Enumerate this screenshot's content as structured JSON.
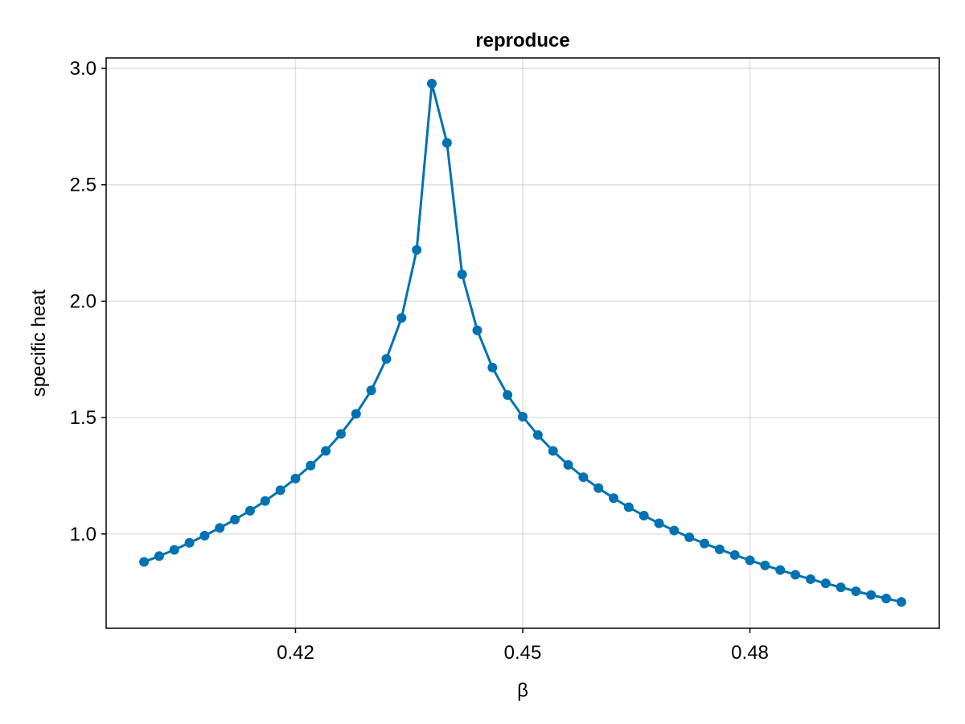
{
  "chart_data": {
    "type": "line",
    "title": "reproduce",
    "xlabel": "β",
    "ylabel": "specific heat",
    "xlim": [
      0.395,
      0.505
    ],
    "ylim": [
      0.595,
      3.045
    ],
    "xticks": [
      0.42,
      0.45,
      0.48
    ],
    "xtick_labels": [
      "0.42",
      "0.45",
      "0.48"
    ],
    "yticks": [
      1.0,
      1.5,
      2.0,
      2.5,
      3.0
    ],
    "ytick_labels": [
      "1.0",
      "1.5",
      "2.0",
      "2.5",
      "3.0"
    ],
    "grid": true,
    "colors": {
      "series": "#0072b2"
    },
    "series": [
      {
        "markers": true,
        "x": [
          0.4,
          0.402,
          0.404,
          0.406,
          0.408,
          0.41,
          0.412,
          0.414,
          0.416,
          0.418,
          0.42,
          0.422,
          0.424,
          0.426,
          0.428,
          0.43,
          0.432,
          0.434,
          0.436,
          0.438,
          0.44,
          0.442,
          0.444,
          0.446,
          0.448,
          0.45,
          0.452,
          0.454,
          0.456,
          0.458,
          0.46,
          0.462,
          0.464,
          0.466,
          0.468,
          0.47,
          0.472,
          0.474,
          0.476,
          0.478,
          0.48,
          0.482,
          0.484,
          0.486,
          0.488,
          0.49,
          0.492,
          0.494,
          0.496,
          0.498,
          0.5
        ],
        "y": [
          0.88,
          0.905,
          0.932,
          0.962,
          0.993,
          1.026,
          1.062,
          1.1,
          1.142,
          1.188,
          1.238,
          1.294,
          1.357,
          1.43,
          1.516,
          1.617,
          1.752,
          1.928,
          2.22,
          2.935,
          2.68,
          2.115,
          1.875,
          1.715,
          1.597,
          1.504,
          1.425,
          1.357,
          1.297,
          1.244,
          1.197,
          1.154,
          1.115,
          1.079,
          1.046,
          1.015,
          0.986,
          0.959,
          0.934,
          0.91,
          0.887,
          0.865,
          0.845,
          0.825,
          0.806,
          0.788,
          0.771,
          0.754,
          0.738,
          0.723,
          0.708
        ]
      }
    ]
  }
}
